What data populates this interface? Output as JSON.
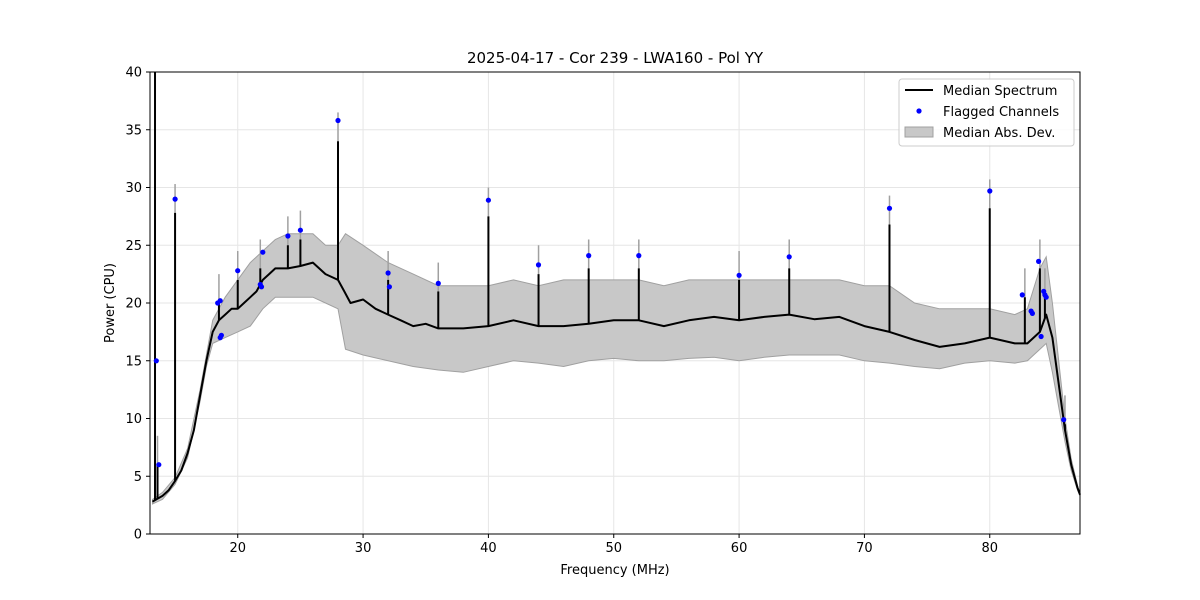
{
  "chart_data": {
    "type": "line",
    "title": "2025-04-17 - Cor 239 - LWA160 - Pol YY",
    "xlabel": "Frequency (MHz)",
    "ylabel": "Power (CPU)",
    "xlim": [
      13.0,
      87.2
    ],
    "ylim": [
      0,
      40
    ],
    "xticks": [
      20,
      30,
      40,
      50,
      60,
      70,
      80
    ],
    "yticks": [
      0,
      5,
      10,
      15,
      20,
      25,
      30,
      35,
      40
    ],
    "grid": true,
    "legend_position": "top-right",
    "colors": {
      "median": "#000000",
      "flagged": "#0000ff",
      "band_fill": "#c8c8c8",
      "band_edge": "#a0a0a0",
      "grid": "#e6e6e6"
    },
    "series": [
      {
        "name": "Median Spectrum",
        "kind": "line",
        "x": [
          13.2,
          13.5,
          14.0,
          14.5,
          15.0,
          15.5,
          16.0,
          16.5,
          17.0,
          17.5,
          18.0,
          18.5,
          19.0,
          19.5,
          20.0,
          20.5,
          21.0,
          21.5,
          22.0,
          22.5,
          23.0,
          23.5,
          24.0,
          25.0,
          26.0,
          27.0,
          28.0,
          28.5,
          29.0,
          30.0,
          31.0,
          32.0,
          33.0,
          34.0,
          35.0,
          36.0,
          38.0,
          40.0,
          42.0,
          44.0,
          46.0,
          48.0,
          50.0,
          52.0,
          54.0,
          56.0,
          58.0,
          60.0,
          62.0,
          64.0,
          66.0,
          68.0,
          70.0,
          72.0,
          74.0,
          76.0,
          78.0,
          80.0,
          82.0,
          83.0,
          84.0,
          84.5,
          85.0,
          85.5,
          86.0,
          86.5,
          87.0,
          87.2
        ],
        "y": [
          2.8,
          3.0,
          3.3,
          3.8,
          4.6,
          5.5,
          7.0,
          9.0,
          12.0,
          15.0,
          17.5,
          18.5,
          19.0,
          19.5,
          19.5,
          20.0,
          20.5,
          21.0,
          22.0,
          22.5,
          23.0,
          23.0,
          23.0,
          23.2,
          23.5,
          22.5,
          22.0,
          21.0,
          20.0,
          20.3,
          19.5,
          19.0,
          18.5,
          18.0,
          18.2,
          17.8,
          17.8,
          18.0,
          18.5,
          18.0,
          18.0,
          18.2,
          18.5,
          18.5,
          18.0,
          18.5,
          18.8,
          18.5,
          18.8,
          19.0,
          18.6,
          18.8,
          18.0,
          17.5,
          16.8,
          16.2,
          16.5,
          17.0,
          16.5,
          16.5,
          17.5,
          19.0,
          17.0,
          13.0,
          9.0,
          6.0,
          4.0,
          3.4
        ]
      },
      {
        "name": "Median Spectrum",
        "kind": "spikes",
        "x": [
          13.4,
          13.6,
          15.0,
          18.5,
          20.0,
          21.8,
          24.0,
          25.0,
          28.0,
          32.0,
          36.0,
          40.0,
          44.0,
          48.0,
          52.0,
          60.0,
          64.0,
          72.0,
          80.0,
          82.8,
          84.0,
          84.4,
          86.0
        ],
        "y": [
          40,
          6.0,
          27.8,
          20.0,
          22.0,
          23.0,
          25.0,
          25.5,
          34.0,
          22.0,
          21.0,
          27.5,
          22.5,
          23.0,
          23.0,
          22.0,
          23.0,
          26.8,
          28.2,
          20.5,
          23.0,
          20.5,
          9.5
        ]
      },
      {
        "name": "Flagged Channels",
        "kind": "scatter",
        "x": [
          13.5,
          13.7,
          15.0,
          18.4,
          18.6,
          18.6,
          18.7,
          20.0,
          21.8,
          22.0,
          21.9,
          24.0,
          25.0,
          28.0,
          32.0,
          32.1,
          36.0,
          40.0,
          44.0,
          48.0,
          52.0,
          60.0,
          64.0,
          72.0,
          80.0,
          82.6,
          83.3,
          83.4,
          83.9,
          84.1,
          84.3,
          84.4,
          84.5,
          85.9
        ],
        "y": [
          15.0,
          6.0,
          29.0,
          20.0,
          20.2,
          17.0,
          17.2,
          22.8,
          21.6,
          24.4,
          21.4,
          25.8,
          26.3,
          35.8,
          22.6,
          21.4,
          21.7,
          28.9,
          23.3,
          24.1,
          24.1,
          22.4,
          24.0,
          28.2,
          29.7,
          20.7,
          19.3,
          19.1,
          23.6,
          17.1,
          21.0,
          20.7,
          20.5,
          9.9
        ]
      },
      {
        "name": "Median Abs. Dev.",
        "kind": "band",
        "x": [
          13.2,
          14.0,
          15.0,
          16.0,
          17.0,
          17.5,
          18.0,
          19.0,
          20.0,
          21.0,
          22.0,
          23.0,
          24.0,
          25.0,
          26.0,
          27.0,
          28.0,
          28.6,
          30.0,
          32.0,
          34.0,
          36.0,
          38.0,
          40.0,
          42.0,
          44.0,
          46.0,
          48.0,
          50.0,
          52.0,
          54.0,
          56.0,
          58.0,
          60.0,
          62.0,
          64.0,
          66.0,
          68.0,
          70.0,
          72.0,
          74.0,
          76.0,
          78.0,
          80.0,
          82.0,
          83.0,
          84.0,
          84.5,
          85.0,
          85.5,
          86.0,
          86.5,
          87.0,
          87.2
        ],
        "lower": [
          2.6,
          3.0,
          4.3,
          6.6,
          11.5,
          14.5,
          16.5,
          17.0,
          17.5,
          18.0,
          19.5,
          20.5,
          20.5,
          20.5,
          20.5,
          20.0,
          19.5,
          16.0,
          15.5,
          15.0,
          14.5,
          14.2,
          14.0,
          14.5,
          15.0,
          14.8,
          14.5,
          15.0,
          15.2,
          15.0,
          15.0,
          15.2,
          15.3,
          15.0,
          15.3,
          15.5,
          15.5,
          15.5,
          15.0,
          14.8,
          14.5,
          14.3,
          14.8,
          15.0,
          14.8,
          15.0,
          16.0,
          16.5,
          14.0,
          11.0,
          8.0,
          5.5,
          3.8,
          3.3
        ],
        "upper": [
          3.0,
          3.6,
          4.9,
          7.4,
          12.5,
          15.5,
          18.5,
          20.5,
          22.0,
          23.5,
          24.5,
          25.5,
          26.0,
          26.0,
          26.0,
          25.0,
          25.0,
          26.0,
          25.0,
          23.5,
          22.5,
          21.5,
          21.5,
          21.5,
          22.0,
          21.5,
          22.0,
          22.0,
          22.0,
          22.0,
          21.5,
          22.0,
          22.0,
          22.0,
          22.0,
          22.0,
          22.0,
          22.0,
          21.5,
          21.5,
          20.0,
          19.5,
          19.5,
          19.5,
          19.0,
          19.5,
          23.0,
          24.0,
          20.0,
          15.0,
          10.0,
          6.5,
          4.2,
          3.5
        ]
      }
    ]
  }
}
